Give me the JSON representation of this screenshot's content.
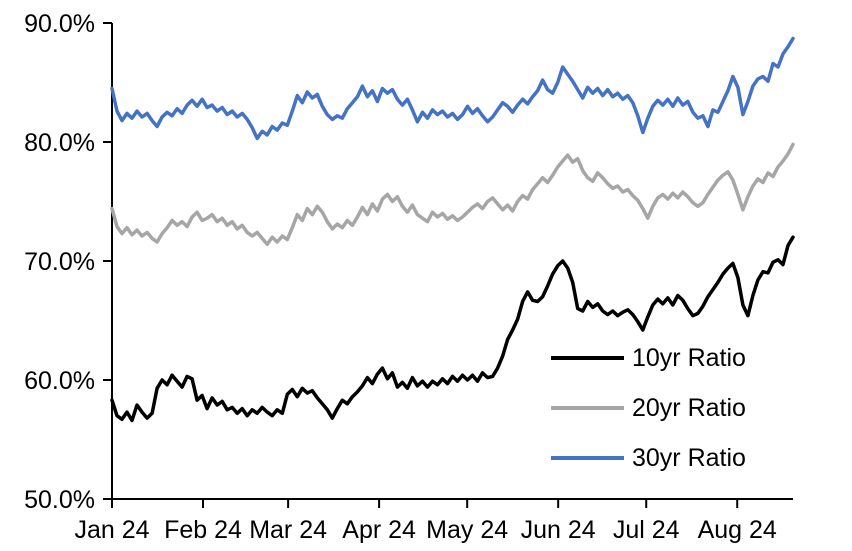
{
  "chart_data": {
    "type": "line",
    "title": "",
    "xlabel": "",
    "ylabel": "",
    "grid": false,
    "background_color": "#FFFFFF",
    "axis_color": "#000000",
    "legend_position": "inside-lower-right",
    "x_axis": {
      "tick_labels": [
        "Jan 24",
        "Feb 24",
        "Mar 24",
        "Apr 24",
        "May 24",
        "Jun 24",
        "Jul 24",
        "Aug 24"
      ],
      "tick_day_offsets": [
        0,
        31,
        60,
        91,
        121,
        152,
        182,
        213
      ],
      "total_days": 232
    },
    "y_axis": {
      "tick_labels": [
        "50.0%",
        "60.0%",
        "70.0%",
        "80.0%",
        "90.0%"
      ],
      "tick_values": [
        50,
        60,
        70,
        80,
        90
      ],
      "min": 50,
      "max": 90,
      "unit": "%"
    },
    "series": [
      {
        "name": "10yr Ratio",
        "color": "#000000",
        "values": [
          58.3,
          57.0,
          56.7,
          57.3,
          56.6,
          57.9,
          57.3,
          56.8,
          57.2,
          59.3,
          60.0,
          59.6,
          60.4,
          59.9,
          59.4,
          60.3,
          60.1,
          58.3,
          58.7,
          57.6,
          58.5,
          57.9,
          58.2,
          57.5,
          57.7,
          57.2,
          57.6,
          57.0,
          57.5,
          57.2,
          57.7,
          57.3,
          57.0,
          57.5,
          57.2,
          58.8,
          59.2,
          58.6,
          59.3,
          58.9,
          59.1,
          58.5,
          58.0,
          57.5,
          56.8,
          57.6,
          58.3,
          58.0,
          58.6,
          59.0,
          59.5,
          60.2,
          59.7,
          60.5,
          61.0,
          60.1,
          60.6,
          59.4,
          59.8,
          59.3,
          60.2,
          59.5,
          59.9,
          59.4,
          59.9,
          59.6,
          60.1,
          59.7,
          60.3,
          59.9,
          60.4,
          60.0,
          60.4,
          59.9,
          60.6,
          60.2,
          60.3,
          61.0,
          62.0,
          63.4,
          64.2,
          65.1,
          66.6,
          67.4,
          66.7,
          66.6,
          67.0,
          67.9,
          68.9,
          69.6,
          70.0,
          69.4,
          68.2,
          66.0,
          65.8,
          66.6,
          66.1,
          66.4,
          65.8,
          65.5,
          65.8,
          65.4,
          65.7,
          65.9,
          65.5,
          64.9,
          64.2,
          65.3,
          66.3,
          66.8,
          66.4,
          66.9,
          66.3,
          67.1,
          66.7,
          66.0,
          65.4,
          65.6,
          66.2,
          67.0,
          67.6,
          68.2,
          68.9,
          69.4,
          69.8,
          68.6,
          66.3,
          65.4,
          67.1,
          68.4,
          69.1,
          69.0,
          69.9,
          70.1,
          69.7,
          71.3,
          72.0
        ]
      },
      {
        "name": "20yr Ratio",
        "color": "#A6A6A6",
        "values": [
          74.4,
          72.9,
          72.3,
          72.8,
          72.2,
          72.6,
          72.1,
          72.4,
          71.9,
          71.6,
          72.3,
          72.8,
          73.4,
          73.0,
          73.3,
          72.9,
          73.7,
          74.1,
          73.4,
          73.6,
          73.9,
          73.3,
          73.6,
          73.0,
          73.3,
          72.7,
          73.0,
          72.4,
          72.1,
          72.4,
          71.9,
          71.4,
          72.0,
          71.6,
          72.1,
          71.8,
          72.8,
          73.9,
          73.4,
          74.4,
          73.9,
          74.6,
          74.1,
          73.3,
          72.7,
          73.1,
          72.8,
          73.4,
          73.0,
          73.7,
          74.5,
          73.9,
          74.8,
          74.2,
          75.2,
          75.6,
          75.0,
          75.4,
          74.6,
          74.1,
          74.7,
          73.9,
          73.6,
          73.3,
          74.1,
          73.7,
          74.0,
          73.5,
          73.8,
          73.4,
          73.7,
          74.1,
          74.5,
          74.8,
          74.4,
          75.0,
          75.3,
          74.8,
          74.3,
          74.7,
          74.2,
          75.0,
          75.5,
          75.2,
          76.0,
          76.5,
          77.0,
          76.6,
          77.2,
          77.9,
          78.4,
          78.9,
          78.3,
          78.6,
          77.6,
          77.0,
          76.7,
          77.4,
          77.0,
          76.5,
          76.1,
          76.3,
          75.8,
          76.0,
          75.5,
          75.1,
          74.4,
          73.6,
          74.6,
          75.3,
          75.6,
          75.2,
          75.7,
          75.3,
          75.8,
          75.4,
          74.9,
          74.6,
          74.9,
          75.6,
          76.2,
          76.8,
          77.2,
          77.5,
          76.8,
          75.6,
          74.3,
          75.4,
          76.3,
          76.9,
          76.6,
          77.4,
          77.1,
          77.9,
          78.4,
          79.0,
          79.8
        ]
      },
      {
        "name": "30yr Ratio",
        "color": "#4472C4",
        "values": [
          84.5,
          82.6,
          81.8,
          82.4,
          82.0,
          82.6,
          82.1,
          82.4,
          81.8,
          81.3,
          82.1,
          82.5,
          82.2,
          82.8,
          82.4,
          83.1,
          83.5,
          83.0,
          83.6,
          82.9,
          83.1,
          82.6,
          82.9,
          82.3,
          82.6,
          82.1,
          82.4,
          81.9,
          81.2,
          80.3,
          80.9,
          80.6,
          81.3,
          81.0,
          81.6,
          81.4,
          82.6,
          83.9,
          83.3,
          84.2,
          83.7,
          84.0,
          83.0,
          82.3,
          81.9,
          82.2,
          82.0,
          82.8,
          83.3,
          83.8,
          84.7,
          83.8,
          84.3,
          83.4,
          84.5,
          84.1,
          84.4,
          83.6,
          83.1,
          83.6,
          82.7,
          81.7,
          82.5,
          82.0,
          82.7,
          82.3,
          82.6,
          82.1,
          82.4,
          81.9,
          82.3,
          83.0,
          82.4,
          82.8,
          82.2,
          81.7,
          82.1,
          82.7,
          83.3,
          83.0,
          82.5,
          83.1,
          83.6,
          83.2,
          83.8,
          84.3,
          85.2,
          84.4,
          84.1,
          85.0,
          86.3,
          85.7,
          85.1,
          84.4,
          83.7,
          84.6,
          84.1,
          84.5,
          83.9,
          84.4,
          83.8,
          84.1,
          83.6,
          83.9,
          83.3,
          82.2,
          80.8,
          82.0,
          83.0,
          83.5,
          83.1,
          83.6,
          83.0,
          83.7,
          83.1,
          83.4,
          82.5,
          82.0,
          82.2,
          81.3,
          82.7,
          82.5,
          83.4,
          84.3,
          85.5,
          84.6,
          82.3,
          83.4,
          84.7,
          85.3,
          85.5,
          85.1,
          86.6,
          86.3,
          87.4,
          88.0,
          88.7
        ]
      }
    ]
  }
}
